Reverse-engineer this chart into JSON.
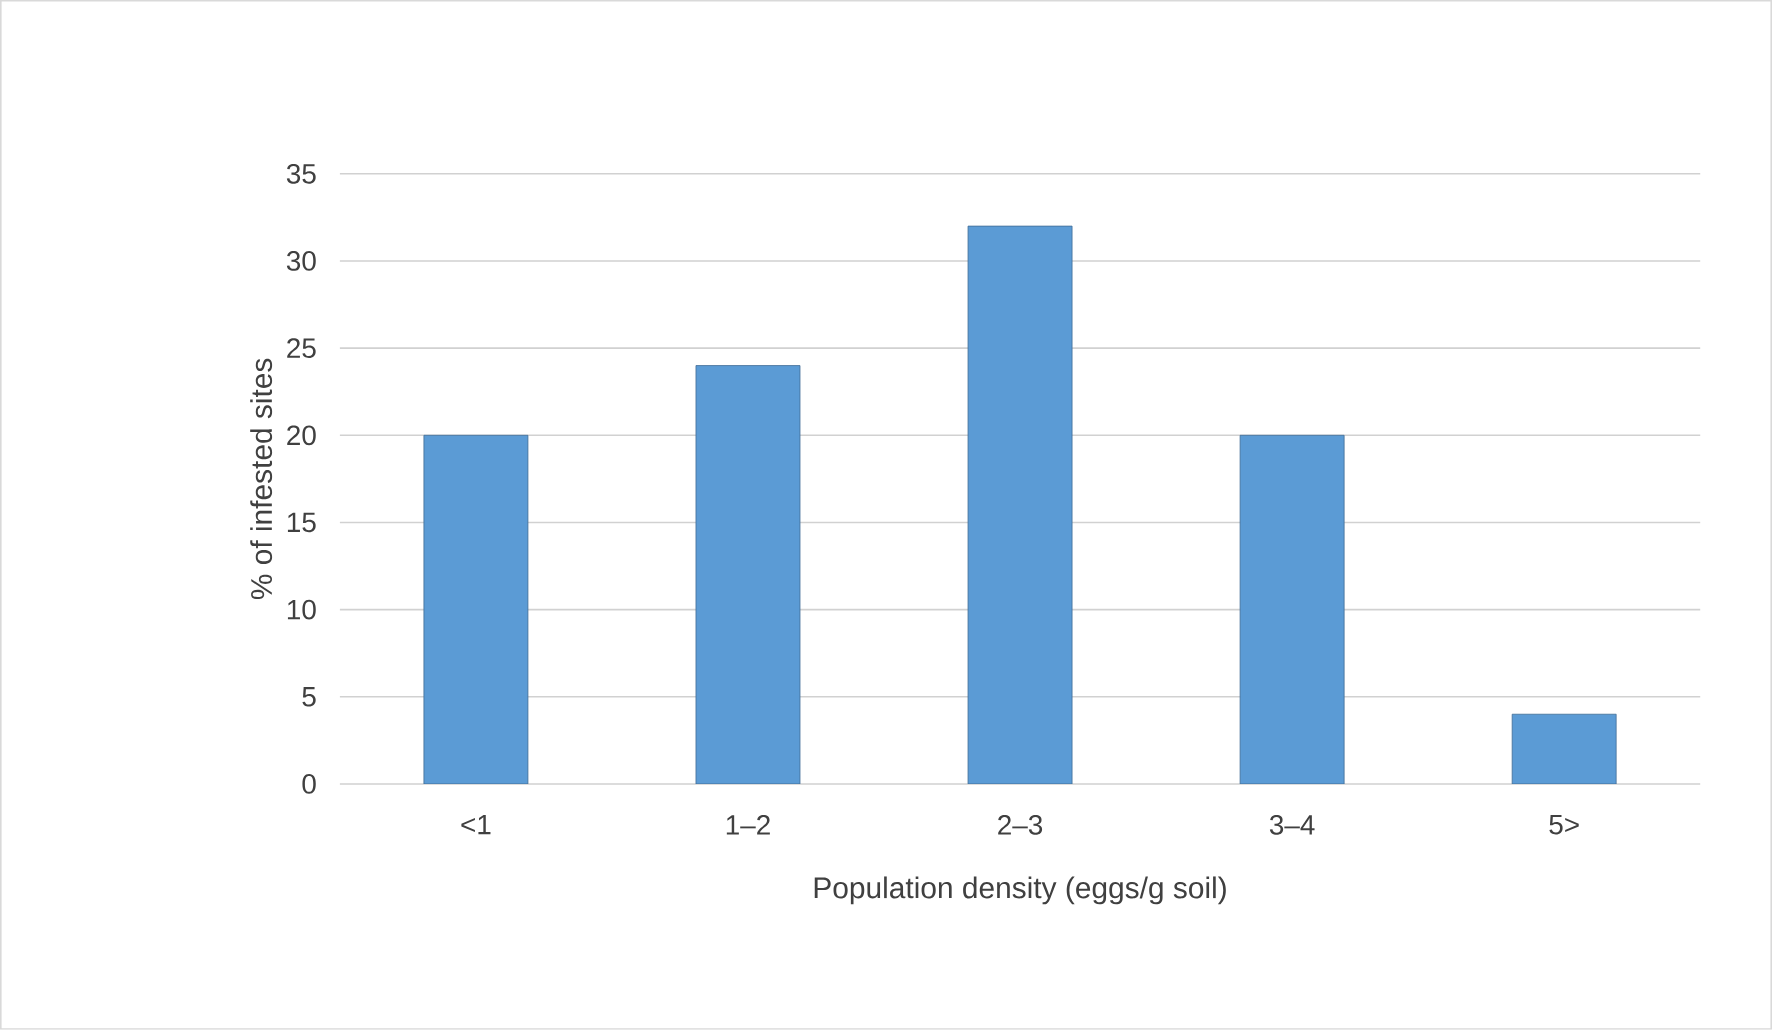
{
  "chart_data": {
    "type": "bar",
    "xlabel": "Population density (eggs/g soil)",
    "ylabel": "% of infested sites",
    "categories": [
      "<1",
      "1–2",
      "2–3",
      "3–4",
      "5>"
    ],
    "values": [
      20,
      24,
      32,
      20,
      4
    ],
    "color": "#5b9bd5",
    "ylim": [
      0,
      35
    ],
    "yticks": [
      0,
      5,
      10,
      15,
      20,
      25,
      30,
      35
    ],
    "grid": "y"
  }
}
